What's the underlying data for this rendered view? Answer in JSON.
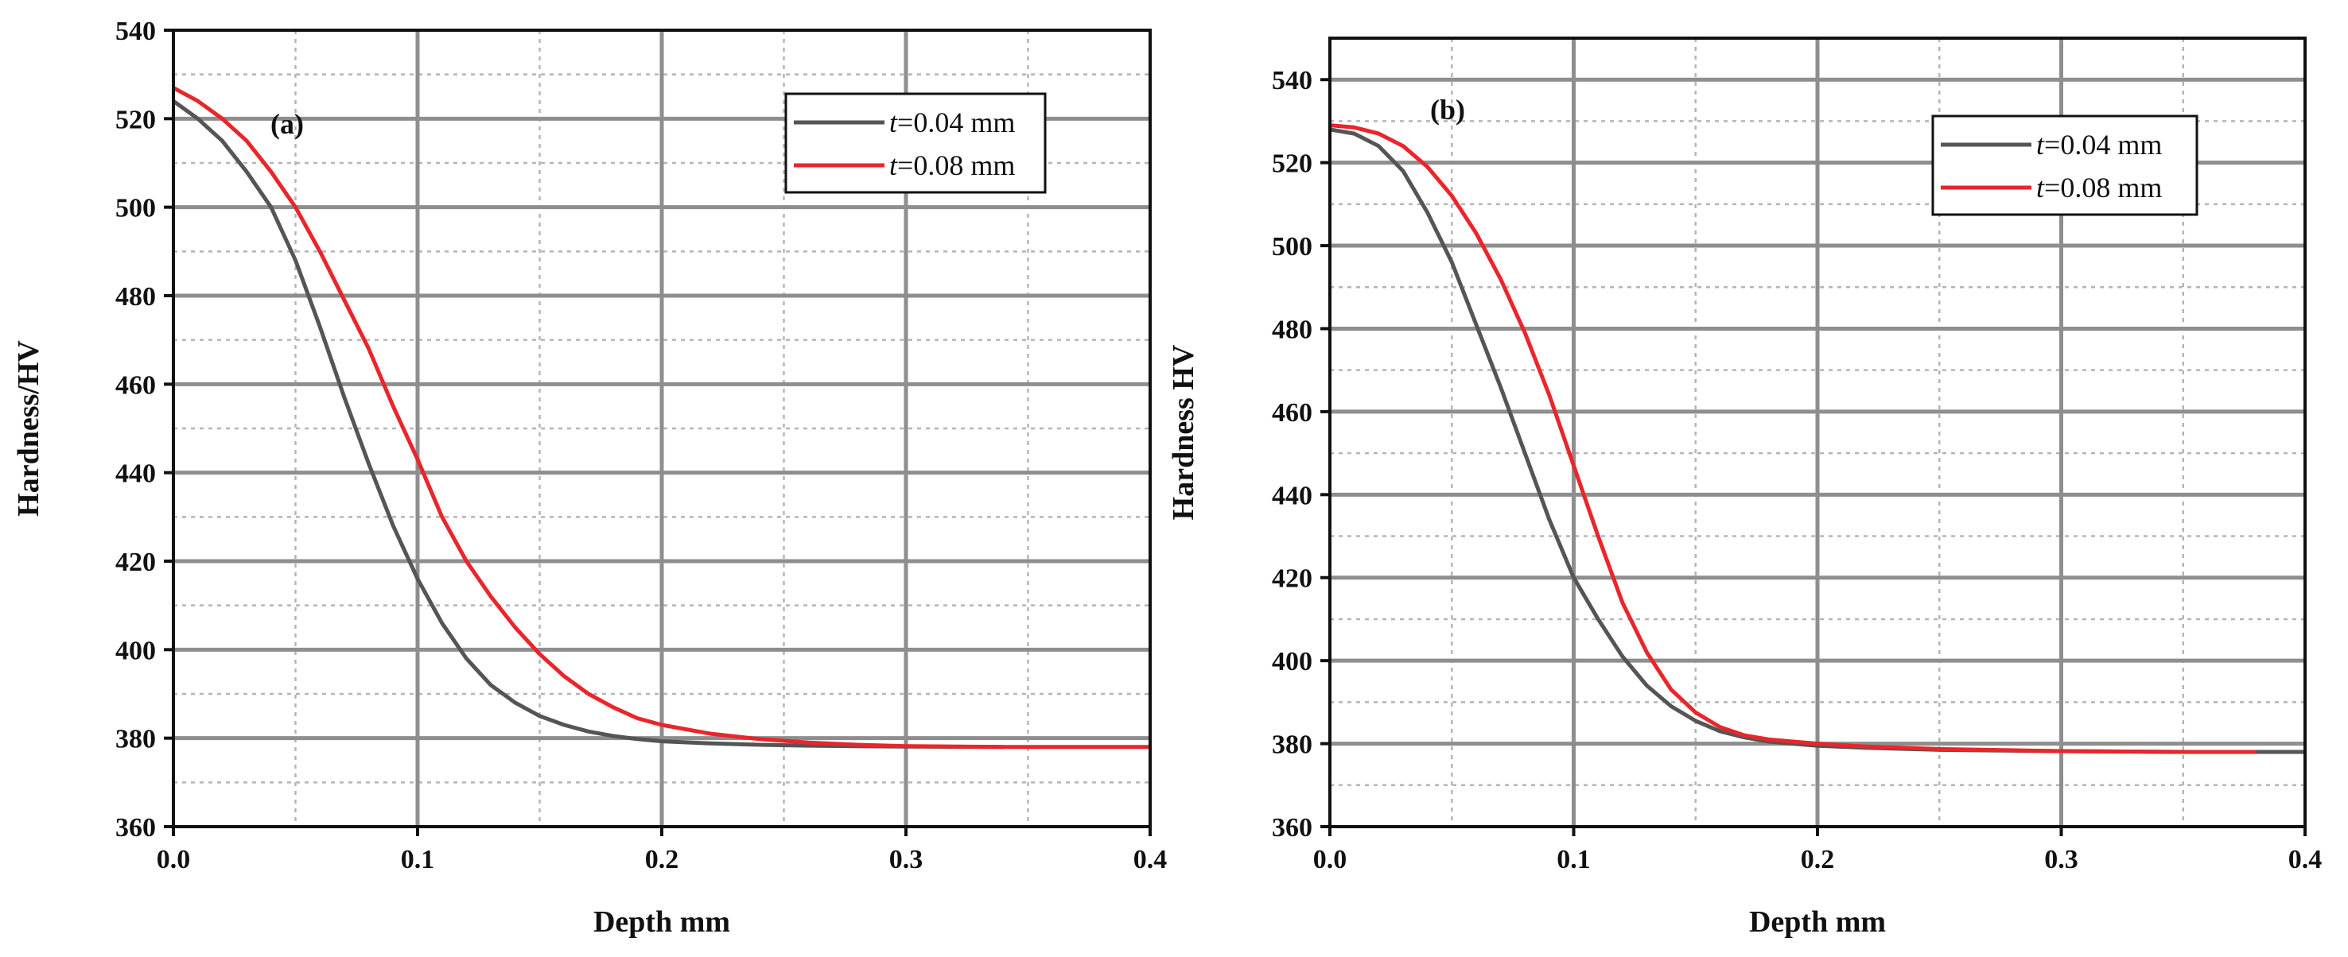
{
  "chart_data": [
    {
      "type": "line",
      "panel_label": "(a)",
      "xlabel": "Depth mm",
      "ylabel": "Hardness/HV",
      "xlim": [
        0.0,
        0.4
      ],
      "ylim": [
        360,
        540
      ],
      "x_ticks": [
        "0.0",
        "0.1",
        "0.2",
        "0.3",
        "0.4"
      ],
      "y_ticks": [
        "360",
        "380",
        "400",
        "420",
        "440",
        "460",
        "480",
        "500",
        "520",
        "540"
      ],
      "grid": true,
      "legend_position": "top-right",
      "series": [
        {
          "name": "t=0.04 mm",
          "legend_var": "t",
          "legend_rest": "=0.04 mm",
          "color": "#555555",
          "x": [
            0,
            0.01,
            0.02,
            0.03,
            0.04,
            0.05,
            0.06,
            0.07,
            0.08,
            0.09,
            0.1,
            0.11,
            0.12,
            0.13,
            0.14,
            0.15,
            0.16,
            0.17,
            0.18,
            0.19,
            0.2,
            0.22,
            0.24,
            0.26,
            0.28,
            0.3,
            0.34
          ],
          "y": [
            524,
            520,
            515,
            508,
            500,
            488,
            473,
            457,
            442,
            428,
            416,
            406,
            398,
            392,
            388,
            385,
            383,
            381.5,
            380.5,
            379.8,
            379.3,
            378.8,
            378.5,
            378.3,
            378.2,
            378.1,
            378
          ]
        },
        {
          "name": "t=0.08 mm",
          "legend_var": "t",
          "legend_rest": "=0.08 mm",
          "color": "#e8262b",
          "x": [
            0,
            0.01,
            0.02,
            0.03,
            0.04,
            0.05,
            0.06,
            0.07,
            0.08,
            0.09,
            0.1,
            0.11,
            0.12,
            0.13,
            0.14,
            0.15,
            0.16,
            0.17,
            0.18,
            0.19,
            0.2,
            0.22,
            0.24,
            0.26,
            0.28,
            0.3,
            0.34,
            0.4
          ],
          "y": [
            527,
            524,
            520,
            515,
            508,
            500,
            490,
            479,
            468,
            455,
            443,
            430,
            420,
            412,
            405,
            399,
            394,
            390,
            387,
            384.5,
            383,
            381,
            379.8,
            379,
            378.5,
            378.2,
            378,
            378
          ]
        }
      ]
    },
    {
      "type": "line",
      "panel_label": "(b)",
      "xlabel": "Depth mm",
      "ylabel": "Hardness HV",
      "xlim": [
        0.0,
        0.4
      ],
      "ylim": [
        360,
        550
      ],
      "x_ticks": [
        "0.0",
        "0.1",
        "0.2",
        "0.3",
        "0.4"
      ],
      "y_ticks": [
        "360",
        "380",
        "400",
        "420",
        "440",
        "460",
        "480",
        "500",
        "520",
        "540"
      ],
      "grid": true,
      "legend_position": "top-right",
      "series": [
        {
          "name": "t=0.04 mm",
          "legend_var": "t",
          "legend_rest": "=0.04 mm",
          "color": "#555555",
          "x": [
            0,
            0.01,
            0.02,
            0.03,
            0.04,
            0.05,
            0.06,
            0.07,
            0.08,
            0.09,
            0.1,
            0.11,
            0.12,
            0.13,
            0.14,
            0.15,
            0.16,
            0.17,
            0.18,
            0.2,
            0.22,
            0.25,
            0.3,
            0.35,
            0.4
          ],
          "y": [
            528,
            527,
            524,
            518,
            508,
            496,
            481,
            466,
            450,
            434,
            420,
            410,
            401,
            394,
            389,
            385.5,
            383,
            381.5,
            380.5,
            379.5,
            379,
            378.5,
            378.2,
            378,
            378
          ]
        },
        {
          "name": "t=0.08 mm",
          "legend_var": "t",
          "legend_rest": "=0.08 mm",
          "color": "#e8262b",
          "x": [
            0,
            0.01,
            0.02,
            0.03,
            0.04,
            0.05,
            0.06,
            0.07,
            0.08,
            0.09,
            0.1,
            0.11,
            0.12,
            0.13,
            0.14,
            0.15,
            0.16,
            0.17,
            0.18,
            0.2,
            0.22,
            0.25,
            0.3,
            0.35,
            0.38
          ],
          "y": [
            529,
            528.5,
            527,
            524,
            519,
            512,
            503,
            492,
            479,
            464,
            447,
            430,
            414,
            402,
            393,
            387.5,
            384,
            382,
            381,
            380,
            379.3,
            378.7,
            378.2,
            378,
            378
          ]
        }
      ]
    }
  ]
}
